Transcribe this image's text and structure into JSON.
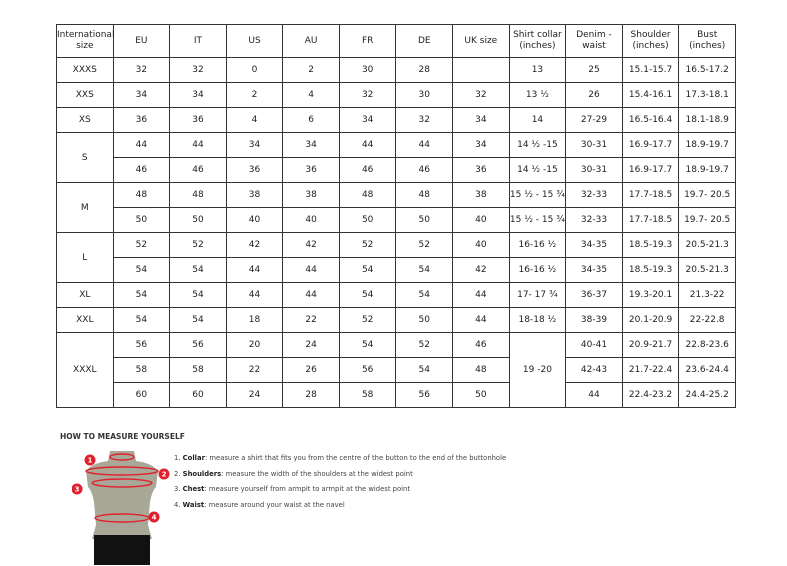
{
  "table": {
    "headers": [
      "International size",
      "EU",
      "IT",
      "US",
      "AU",
      "FR",
      "DE",
      "UK size",
      "Shirt collar (inches)",
      "Denim - waist",
      "Shoulder (inches)",
      "Bust (inches)"
    ],
    "rows": [
      [
        {
          "t": "XXXS"
        },
        {
          "t": "32"
        },
        {
          "t": "32"
        },
        {
          "t": "0"
        },
        {
          "t": "2"
        },
        {
          "t": "30"
        },
        {
          "t": "28"
        },
        {
          "t": ""
        },
        {
          "t": "13"
        },
        {
          "t": "25"
        },
        {
          "t": "15.1-15.7"
        },
        {
          "t": "16.5-17.2"
        }
      ],
      [
        {
          "t": "XXS"
        },
        {
          "t": "34"
        },
        {
          "t": "34"
        },
        {
          "t": "2"
        },
        {
          "t": "4"
        },
        {
          "t": "32"
        },
        {
          "t": "30"
        },
        {
          "t": "32"
        },
        {
          "t": "13 ½"
        },
        {
          "t": "26"
        },
        {
          "t": "15.4-16.1"
        },
        {
          "t": "17.3-18.1"
        }
      ],
      [
        {
          "t": "XS"
        },
        {
          "t": "36"
        },
        {
          "t": "36"
        },
        {
          "t": "4"
        },
        {
          "t": "6"
        },
        {
          "t": "34"
        },
        {
          "t": "32"
        },
        {
          "t": "34"
        },
        {
          "t": "14"
        },
        {
          "t": "27-29"
        },
        {
          "t": "16.5-16.4"
        },
        {
          "t": "18.1-18.9"
        }
      ],
      [
        {
          "t": "S",
          "rowspan": 2
        },
        {
          "t": "44"
        },
        {
          "t": "44"
        },
        {
          "t": "34"
        },
        {
          "t": "34"
        },
        {
          "t": "44"
        },
        {
          "t": "44"
        },
        {
          "t": "34"
        },
        {
          "t": "14 ½ -15"
        },
        {
          "t": "30-31"
        },
        {
          "t": "16.9-17.7"
        },
        {
          "t": "18.9-19.7"
        }
      ],
      [
        {
          "t": "46"
        },
        {
          "t": "46"
        },
        {
          "t": "36"
        },
        {
          "t": "36"
        },
        {
          "t": "46"
        },
        {
          "t": "46"
        },
        {
          "t": "36"
        },
        {
          "t": "14 ½ -15"
        },
        {
          "t": "30-31"
        },
        {
          "t": "16.9-17.7"
        },
        {
          "t": "18.9-19.7"
        }
      ],
      [
        {
          "t": "M",
          "rowspan": 2
        },
        {
          "t": "48"
        },
        {
          "t": "48"
        },
        {
          "t": "38"
        },
        {
          "t": "38"
        },
        {
          "t": "48"
        },
        {
          "t": "48"
        },
        {
          "t": "38"
        },
        {
          "t": "15 ½ - 15 ¾"
        },
        {
          "t": "32-33"
        },
        {
          "t": "17.7-18.5"
        },
        {
          "t": "19.7- 20.5"
        }
      ],
      [
        {
          "t": "50"
        },
        {
          "t": "50"
        },
        {
          "t": "40"
        },
        {
          "t": "40"
        },
        {
          "t": "50"
        },
        {
          "t": "50"
        },
        {
          "t": "40"
        },
        {
          "t": "15 ½ - 15 ¾"
        },
        {
          "t": "32-33"
        },
        {
          "t": "17.7-18.5"
        },
        {
          "t": "19.7- 20.5"
        }
      ],
      [
        {
          "t": "L",
          "rowspan": 2
        },
        {
          "t": "52"
        },
        {
          "t": "52"
        },
        {
          "t": "42"
        },
        {
          "t": "42"
        },
        {
          "t": "52"
        },
        {
          "t": "52"
        },
        {
          "t": "40"
        },
        {
          "t": "16-16 ½"
        },
        {
          "t": "34-35"
        },
        {
          "t": "18.5-19.3"
        },
        {
          "t": "20.5-21.3"
        }
      ],
      [
        {
          "t": "54"
        },
        {
          "t": "54"
        },
        {
          "t": "44"
        },
        {
          "t": "44"
        },
        {
          "t": "54"
        },
        {
          "t": "54"
        },
        {
          "t": "42"
        },
        {
          "t": "16-16 ½"
        },
        {
          "t": "34-35"
        },
        {
          "t": "18.5-19.3"
        },
        {
          "t": "20.5-21.3"
        }
      ],
      [
        {
          "t": "XL"
        },
        {
          "t": "54"
        },
        {
          "t": "54"
        },
        {
          "t": "44"
        },
        {
          "t": "44"
        },
        {
          "t": "54"
        },
        {
          "t": "54"
        },
        {
          "t": "44"
        },
        {
          "t": "17- 17 ¾"
        },
        {
          "t": "36-37"
        },
        {
          "t": "19.3-20.1"
        },
        {
          "t": "21.3-22"
        }
      ],
      [
        {
          "t": "XXL"
        },
        {
          "t": "54"
        },
        {
          "t": "54"
        },
        {
          "t": "18"
        },
        {
          "t": "22"
        },
        {
          "t": "52"
        },
        {
          "t": "50"
        },
        {
          "t": "44"
        },
        {
          "t": "18-18 ½"
        },
        {
          "t": "38-39"
        },
        {
          "t": "20.1-20.9"
        },
        {
          "t": "22-22.8"
        }
      ],
      [
        {
          "t": "XXXL",
          "rowspan": 3
        },
        {
          "t": "56"
        },
        {
          "t": "56"
        },
        {
          "t": "20"
        },
        {
          "t": "24"
        },
        {
          "t": "54"
        },
        {
          "t": "52"
        },
        {
          "t": "46"
        },
        {
          "t": "19 -20",
          "rowspan": 3
        },
        {
          "t": "40-41"
        },
        {
          "t": "20.9-21.7"
        },
        {
          "t": "22.8-23.6"
        }
      ],
      [
        {
          "t": "58"
        },
        {
          "t": "58"
        },
        {
          "t": "22"
        },
        {
          "t": "26"
        },
        {
          "t": "56"
        },
        {
          "t": "54"
        },
        {
          "t": "48"
        },
        {
          "t": "42-43"
        },
        {
          "t": "21.7-22.4"
        },
        {
          "t": "23.6-24.4"
        }
      ],
      [
        {
          "t": "60"
        },
        {
          "t": "60"
        },
        {
          "t": "24"
        },
        {
          "t": "28"
        },
        {
          "t": "58"
        },
        {
          "t": "56"
        },
        {
          "t": "50"
        },
        {
          "t": "44"
        },
        {
          "t": "22.4-23.2"
        },
        {
          "t": "24.4-25.2"
        }
      ]
    ]
  },
  "guide": {
    "title": "HOW TO MEASURE YOURSELF",
    "markers": [
      "1",
      "2",
      "3",
      "4"
    ],
    "steps": [
      {
        "num": "1.",
        "label": "Collar",
        "text": ": measure a shirt that fits you from the centre of the button to the end of the buttonhole"
      },
      {
        "num": "2.",
        "label": "Shoulders",
        "text": ": measure the width of the shoulders at the widest point"
      },
      {
        "num": "3.",
        "label": "Chest",
        "text": ": measure yourself from armpit to armpit at the widest point"
      },
      {
        "num": "4.",
        "label": "Waist",
        "text": ": measure around your waist at the navel"
      }
    ],
    "colors": {
      "accent": "#e0202c",
      "torso": "#a9a898",
      "shorts": "#111111"
    }
  }
}
